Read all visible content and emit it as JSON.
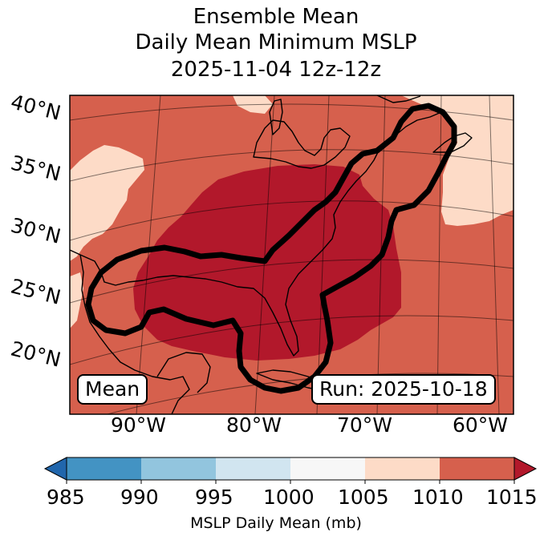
{
  "title": {
    "line1": "Ensemble Mean",
    "line2": "Daily Mean Minimum MSLP",
    "line3": "2025-11-04 12z-12z"
  },
  "map": {
    "lat_labels": [
      "40°N",
      "35°N",
      "30°N",
      "25°N",
      "20°N"
    ],
    "lon_labels": [
      "90°W",
      "80°W",
      "70°W",
      "60°W"
    ],
    "annotation_left": "Mean",
    "annotation_right": "Run: 2025-10-18",
    "colors": {
      "ocean_default": "#d6604d",
      "low": "#b2182b",
      "high": "#fddbc7",
      "contour": "#000000",
      "coast": "#000000"
    }
  },
  "colorbar": {
    "ticks": [
      "985",
      "990",
      "995",
      "1000",
      "1005",
      "1010",
      "1015"
    ],
    "colors": [
      "#2166ac",
      "#4393c3",
      "#92c5de",
      "#d1e5f0",
      "#f7f7f7",
      "#fddbc7",
      "#d6604d",
      "#b2182b"
    ],
    "label": "MSLP Daily Mean (mb)"
  }
}
